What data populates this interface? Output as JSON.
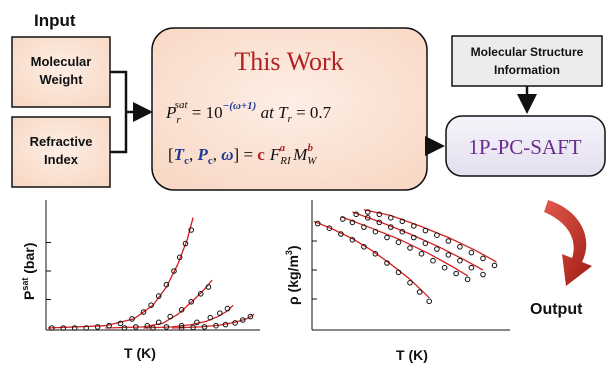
{
  "input": {
    "heading": "Input",
    "molecular_weight": [
      "Molecular",
      "Weight"
    ],
    "refractive_index": [
      "Refractive",
      "Index"
    ]
  },
  "this_work": {
    "title": "This Work",
    "eq1": {
      "p": "P",
      "sub": "r",
      "sup": "sat",
      "rhs": " = 10",
      "exponent": "−(ω+1)",
      "at": " at ",
      "t": "T",
      "tsub": "r",
      "tval": " = 0.7"
    },
    "eq2": {
      "open": "[",
      "tc": "T",
      "tc_sub": "c",
      "pc": "P",
      "pc_sub": "c",
      "omega": "ω",
      "close": "] = ",
      "c": "c",
      "f": "F",
      "f_sub": "RI",
      "f_sup": "a",
      "m": "M",
      "m_sub": "W",
      "m_sup": "b"
    }
  },
  "structure_info": [
    "Molecular Structure",
    "Information"
  ],
  "saft": {
    "label": "1P-PC-SAFT"
  },
  "output": {
    "label": "Output"
  },
  "plot_psat": {
    "ylabel_main": "P",
    "ylabel_sup": "sat",
    "ylabel_tail": " (bar)",
    "xlabel": "T (K)"
  },
  "plot_rho": {
    "ylabel_main": "ρ (kg/m",
    "ylabel_sup": "3",
    "ylabel_tail": ")",
    "xlabel": "T (K)"
  },
  "colors": {
    "box_fill": "#fbe3d6",
    "saft_fill": "#ece9f4",
    "title_red": "#b22222",
    "var_blue": "#1f3a93",
    "arrow_red": "#c0392b",
    "fit_line": "#d42020"
  },
  "chart_data": [
    {
      "type": "scatter",
      "title": "",
      "xlabel": "T (K)",
      "ylabel": "Psat (bar)",
      "grid": false,
      "series": [
        {
          "points": [
            [
              0.02,
              0.0
            ],
            [
              0.08,
              0.0
            ],
            [
              0.14,
              0.0
            ],
            [
              0.2,
              0.0
            ],
            [
              0.26,
              0.01
            ],
            [
              0.32,
              0.02
            ],
            [
              0.38,
              0.04
            ],
            [
              0.44,
              0.08
            ],
            [
              0.5,
              0.14
            ],
            [
              0.54,
              0.2
            ],
            [
              0.58,
              0.28
            ],
            [
              0.62,
              0.38
            ],
            [
              0.66,
              0.5
            ],
            [
              0.69,
              0.62
            ],
            [
              0.72,
              0.74
            ],
            [
              0.75,
              0.86
            ]
          ],
          "line": [
            [
              0.0,
              0.0
            ],
            [
              0.3,
              0.02
            ],
            [
              0.45,
              0.08
            ],
            [
              0.55,
              0.2
            ],
            [
              0.62,
              0.36
            ],
            [
              0.68,
              0.56
            ],
            [
              0.73,
              0.78
            ],
            [
              0.76,
              0.97
            ]
          ]
        },
        {
          "points": [
            [
              0.4,
              0.0
            ],
            [
              0.46,
              0.01
            ],
            [
              0.52,
              0.02
            ],
            [
              0.58,
              0.05
            ],
            [
              0.64,
              0.1
            ],
            [
              0.7,
              0.16
            ],
            [
              0.75,
              0.23
            ],
            [
              0.8,
              0.3
            ],
            [
              0.84,
              0.36
            ]
          ],
          "line": [
            [
              0.3,
              0.0
            ],
            [
              0.5,
              0.01
            ],
            [
              0.6,
              0.04
            ],
            [
              0.68,
              0.12
            ],
            [
              0.76,
              0.24
            ],
            [
              0.82,
              0.34
            ],
            [
              0.86,
              0.42
            ]
          ]
        },
        {
          "points": [
            [
              0.55,
              0.0
            ],
            [
              0.62,
              0.01
            ],
            [
              0.7,
              0.02
            ],
            [
              0.78,
              0.05
            ],
            [
              0.85,
              0.09
            ],
            [
              0.9,
              0.13
            ],
            [
              0.94,
              0.17
            ]
          ],
          "line": [
            [
              0.5,
              0.0
            ],
            [
              0.65,
              0.01
            ],
            [
              0.75,
              0.03
            ],
            [
              0.83,
              0.06
            ],
            [
              0.89,
              0.1
            ],
            [
              0.94,
              0.15
            ],
            [
              0.97,
              0.2
            ]
          ]
        },
        {
          "points": [
            [
              0.7,
              0.0
            ],
            [
              0.76,
              0.005
            ],
            [
              0.82,
              0.01
            ],
            [
              0.88,
              0.02
            ],
            [
              0.93,
              0.03
            ],
            [
              0.98,
              0.045
            ],
            [
              1.02,
              0.07
            ],
            [
              1.06,
              0.1
            ]
          ],
          "line": [
            [
              0.65,
              0.0
            ],
            [
              0.8,
              0.01
            ],
            [
              0.9,
              0.025
            ],
            [
              0.98,
              0.05
            ],
            [
              1.04,
              0.08
            ],
            [
              1.08,
              0.12
            ]
          ]
        }
      ]
    },
    {
      "type": "scatter",
      "title": "",
      "xlabel": "T (K)",
      "ylabel": "ρ (kg/m3)",
      "grid": false,
      "series": [
        {
          "points": [
            [
              0.02,
              0.9
            ],
            [
              0.08,
              0.86
            ],
            [
              0.14,
              0.81
            ],
            [
              0.2,
              0.76
            ],
            [
              0.26,
              0.7
            ],
            [
              0.32,
              0.64
            ],
            [
              0.38,
              0.56
            ],
            [
              0.44,
              0.48
            ],
            [
              0.5,
              0.39
            ],
            [
              0.55,
              0.31
            ],
            [
              0.6,
              0.23
            ]
          ],
          "line": [
            [
              0.0,
              0.92
            ],
            [
              0.1,
              0.85
            ],
            [
              0.2,
              0.77
            ],
            [
              0.3,
              0.67
            ],
            [
              0.4,
              0.55
            ],
            [
              0.5,
              0.42
            ],
            [
              0.6,
              0.26
            ]
          ]
        },
        {
          "points": [
            [
              0.15,
              0.94
            ],
            [
              0.2,
              0.91
            ],
            [
              0.26,
              0.87
            ],
            [
              0.32,
              0.83
            ],
            [
              0.38,
              0.78
            ],
            [
              0.44,
              0.74
            ],
            [
              0.5,
              0.69
            ],
            [
              0.56,
              0.64
            ],
            [
              0.62,
              0.58
            ],
            [
              0.68,
              0.52
            ],
            [
              0.74,
              0.47
            ],
            [
              0.8,
              0.42
            ]
          ],
          "line": [
            [
              0.14,
              0.96
            ],
            [
              0.3,
              0.86
            ],
            [
              0.45,
              0.76
            ],
            [
              0.6,
              0.64
            ],
            [
              0.72,
              0.53
            ],
            [
              0.8,
              0.45
            ]
          ]
        },
        {
          "points": [
            [
              0.22,
              0.98
            ],
            [
              0.28,
              0.95
            ],
            [
              0.34,
              0.91
            ],
            [
              0.4,
              0.87
            ],
            [
              0.46,
              0.83
            ],
            [
              0.52,
              0.78
            ],
            [
              0.58,
              0.73
            ],
            [
              0.64,
              0.68
            ],
            [
              0.7,
              0.63
            ],
            [
              0.76,
              0.58
            ],
            [
              0.82,
              0.52
            ],
            [
              0.88,
              0.46
            ]
          ],
          "line": [
            [
              0.2,
              1.0
            ],
            [
              0.35,
              0.91
            ],
            [
              0.5,
              0.81
            ],
            [
              0.65,
              0.7
            ],
            [
              0.78,
              0.59
            ],
            [
              0.88,
              0.5
            ]
          ]
        },
        {
          "points": [
            [
              0.28,
              1.0
            ],
            [
              0.34,
              0.98
            ],
            [
              0.4,
              0.95
            ],
            [
              0.46,
              0.92
            ],
            [
              0.52,
              0.88
            ],
            [
              0.58,
              0.84
            ],
            [
              0.64,
              0.8
            ],
            [
              0.7,
              0.75
            ],
            [
              0.76,
              0.7
            ],
            [
              0.82,
              0.65
            ],
            [
              0.88,
              0.6
            ],
            [
              0.94,
              0.54
            ]
          ],
          "line": [
            [
              0.26,
              1.02
            ],
            [
              0.4,
              0.97
            ],
            [
              0.55,
              0.88
            ],
            [
              0.7,
              0.78
            ],
            [
              0.84,
              0.67
            ],
            [
              0.95,
              0.57
            ]
          ]
        }
      ]
    }
  ]
}
